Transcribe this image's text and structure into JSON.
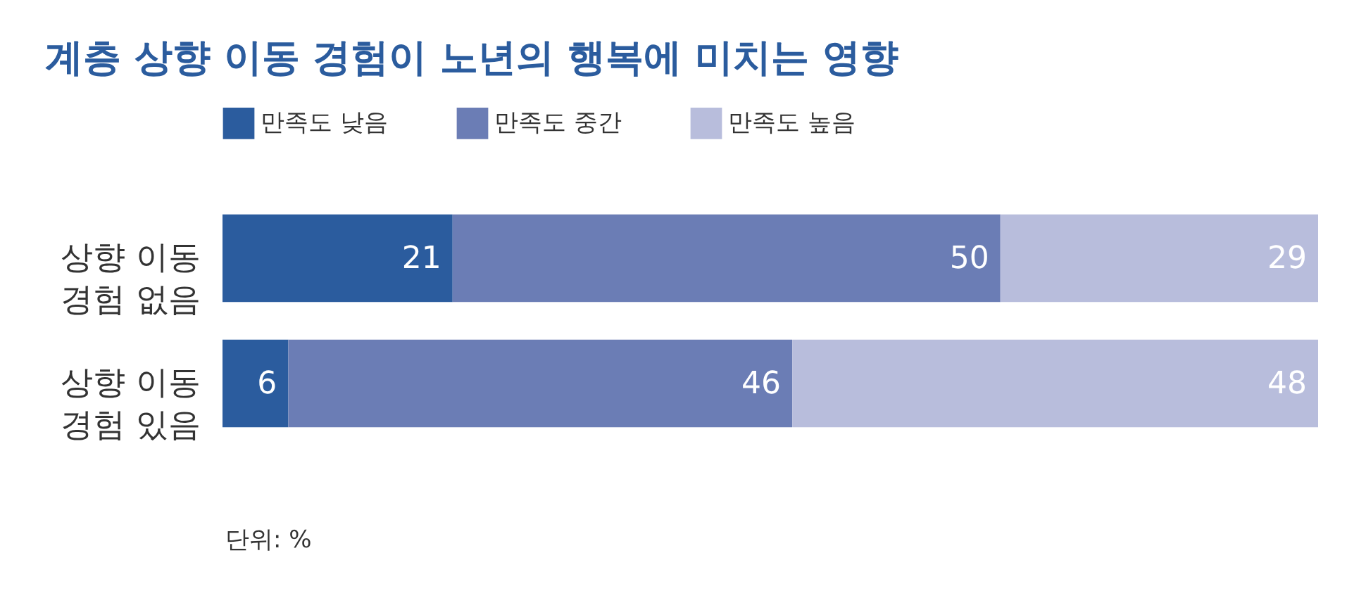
{
  "chart_data": {
    "type": "bar",
    "orientation": "horizontal",
    "stacked": true,
    "title": "계층 상향 이동 경험이 노년의 행복에 미치는 영향",
    "categories": [
      "상향 이동\n경험 없음",
      "상향 이동\n경험 있음"
    ],
    "series": [
      {
        "name": "만족도 낮음",
        "color": "#2b5c9e",
        "values": [
          21,
          6
        ]
      },
      {
        "name": "만족도 중간",
        "color": "#6b7db5",
        "values": [
          50,
          46
        ]
      },
      {
        "name": "만족도 높음",
        "color": "#b8bddc",
        "values": [
          29,
          48
        ]
      }
    ],
    "data_labels": true,
    "legend": "top",
    "tick_labels": "y",
    "annotations": [
      "단위: %"
    ]
  }
}
